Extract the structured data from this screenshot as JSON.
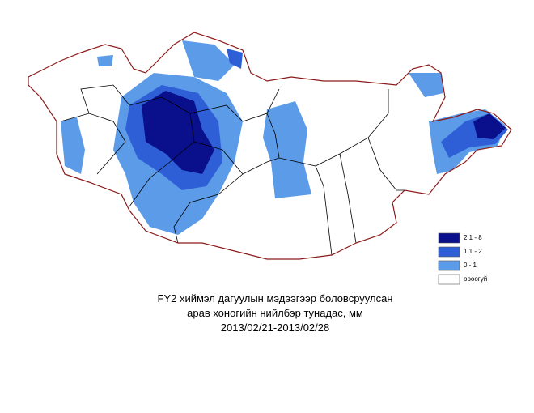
{
  "map": {
    "legend": [
      {
        "label": "2.1 - 8",
        "color": "#0a0f8c"
      },
      {
        "label": "1.1 - 2",
        "color": "#2f5fd6"
      },
      {
        "label": "0 - 1",
        "color": "#5b9be8"
      },
      {
        "label": "ороогүй",
        "color": "#ffffff"
      }
    ],
    "caption": [
      "FY2 хиймэл дагуулын мэдээгээр боловсруулсан",
      "арав хоногийн нийлбэр тунадас, мм",
      "2013/02/21-2013/02/28"
    ]
  }
}
